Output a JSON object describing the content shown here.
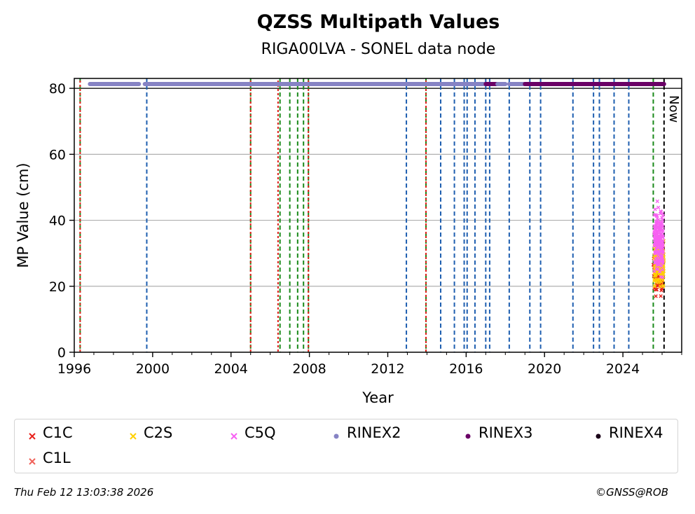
{
  "chart_data": {
    "type": "scatter",
    "title": "QZSS Multipath Values",
    "subtitle": "RIGA00LVA - SONEL data node",
    "xlabel": "Year",
    "ylabel": "MP Value (cm)",
    "xlim": [
      1996.0,
      2027.0
    ],
    "ylim": [
      0,
      83
    ],
    "x_ticks": [
      1996,
      2000,
      2004,
      2008,
      2012,
      2016,
      2020,
      2024
    ],
    "x_tick_labels": [
      "1996",
      "2000",
      "2004",
      "2008",
      "2012",
      "2016",
      "2020",
      "2024"
    ],
    "y_ticks": [
      0,
      20,
      40,
      60,
      80
    ],
    "y_tick_labels": [
      "0",
      "20",
      "40",
      "60",
      "80"
    ],
    "grid": "horizontal",
    "now_label": "Now",
    "now_x": 2026.1,
    "availability_y": 81.3,
    "availability_ref_y": 80,
    "availability_segments": [
      {
        "series": "RINEX2",
        "start": 1996.8,
        "end": 1999.3
      },
      {
        "series": "RINEX2",
        "start": 1999.6,
        "end": 2017.0
      },
      {
        "series": "RINEX3",
        "start": 2017.0,
        "end": 2017.6
      },
      {
        "series": "RINEX2",
        "start": 2017.6,
        "end": 2018.0
      },
      {
        "series": "RINEX2",
        "start": 2018.2,
        "end": 2019.0
      },
      {
        "series": "RINEX3",
        "start": 2019.0,
        "end": 2026.1
      }
    ],
    "event_lines_blue": [
      1999.7,
      2012.95,
      2014.7,
      2015.4,
      2015.9,
      2016.05,
      2016.45,
      2017.0,
      2017.2,
      2018.2,
      2019.25,
      2019.8,
      2021.45,
      2022.5,
      2022.8,
      2023.55,
      2024.3
    ],
    "event_lines_green": [
      1996.3,
      2005.0,
      2006.5,
      2007.0,
      2007.4,
      2007.7,
      2007.95,
      2013.95,
      2025.55
    ],
    "event_lines_red": [
      1996.3,
      2005.0,
      2006.4,
      2007.95,
      2013.95
    ],
    "series": [
      {
        "name": "C1C",
        "marker": "x",
        "color": "#e8221c",
        "x_range": [
          2025.55,
          2026.05
        ],
        "y_range": [
          17,
          41
        ],
        "y_center": 24
      },
      {
        "name": "C1L",
        "marker": "x",
        "color": "#f0625a",
        "x_range": [
          2025.6,
          2026.05
        ],
        "y_range": [
          20,
          40
        ],
        "y_center": 27
      },
      {
        "name": "C2S",
        "marker": "x",
        "color": "#ffd000",
        "x_range": [
          2025.6,
          2026.1
        ],
        "y_range": [
          20,
          45
        ],
        "y_center": 27
      },
      {
        "name": "C5Q",
        "marker": "x",
        "color": "#f761f2",
        "x_range": [
          2025.6,
          2026.05
        ],
        "y_range": [
          22,
          56
        ],
        "y_center": 34
      },
      {
        "name": "RINEX2",
        "marker": "o",
        "color": "#8683c4"
      },
      {
        "name": "RINEX3",
        "marker": "o",
        "color": "#6a0066"
      },
      {
        "name": "RINEX4",
        "marker": "o",
        "color": "#1a0018"
      }
    ]
  },
  "footer": {
    "timestamp": "Thu Feb 12 13:03:38 2026",
    "credit": "©GNSS@ROB"
  }
}
